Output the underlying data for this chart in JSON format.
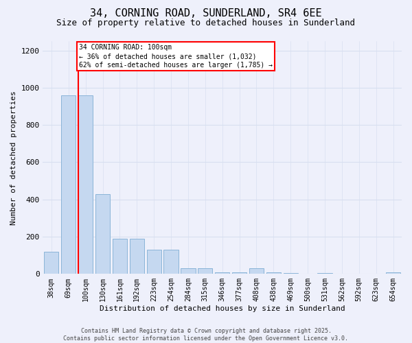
{
  "title_line1": "34, CORNING ROAD, SUNDERLAND, SR4 6EE",
  "title_line2": "Size of property relative to detached houses in Sunderland",
  "xlabel": "Distribution of detached houses by size in Sunderland",
  "ylabel": "Number of detached properties",
  "categories": [
    "38sqm",
    "69sqm",
    "100sqm",
    "130sqm",
    "161sqm",
    "192sqm",
    "223sqm",
    "254sqm",
    "284sqm",
    "315sqm",
    "346sqm",
    "377sqm",
    "408sqm",
    "438sqm",
    "469sqm",
    "500sqm",
    "531sqm",
    "562sqm",
    "592sqm",
    "623sqm",
    "654sqm"
  ],
  "values": [
    120,
    960,
    960,
    430,
    190,
    190,
    130,
    130,
    30,
    30,
    10,
    10,
    30,
    10,
    5,
    0,
    5,
    0,
    0,
    0,
    10
  ],
  "bar_color": "#c5d8f0",
  "bar_edge_color": "#8ab4d8",
  "vline_color": "red",
  "vline_x_index": 2,
  "annotation_text": "34 CORNING ROAD: 100sqm\n← 36% of detached houses are smaller (1,032)\n62% of semi-detached houses are larger (1,785) →",
  "annotation_box_color": "white",
  "annotation_box_edge": "red",
  "ylim": [
    0,
    1250
  ],
  "yticks": [
    0,
    200,
    400,
    600,
    800,
    1000,
    1200
  ],
  "grid_color": "#d8dff0",
  "background_color": "#eef0fb",
  "footer": "Contains HM Land Registry data © Crown copyright and database right 2025.\nContains public sector information licensed under the Open Government Licence v3.0.",
  "fig_width": 6.0,
  "fig_height": 5.0,
  "title_fontsize": 11,
  "subtitle_fontsize": 9,
  "ylabel_fontsize": 8,
  "xlabel_fontsize": 8,
  "tick_fontsize": 7,
  "annotation_fontsize": 7,
  "footer_fontsize": 6
}
